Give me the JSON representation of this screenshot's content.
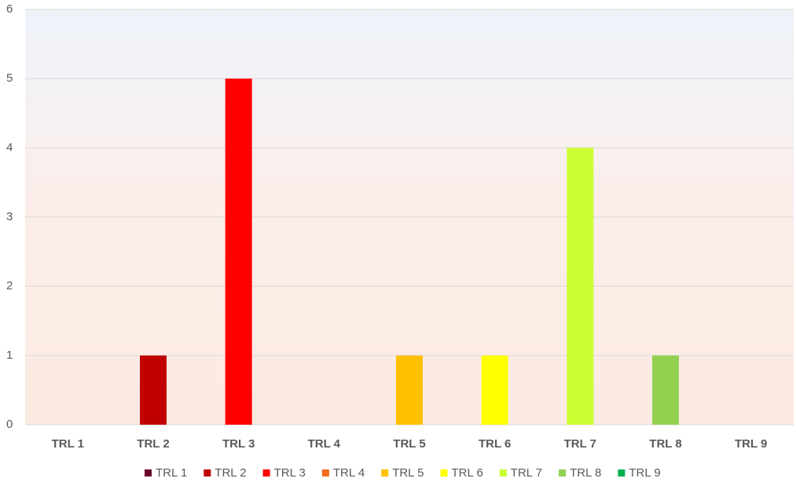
{
  "chart_data": {
    "type": "bar",
    "categories": [
      "TRL 1",
      "TRL 2",
      "TRL 3",
      "TRL 4",
      "TRL 5",
      "TRL 6",
      "TRL 7",
      "TRL 8",
      "TRL 9"
    ],
    "values": [
      0,
      1,
      5,
      0,
      1,
      1,
      4,
      1,
      0
    ],
    "colors": [
      "#6b0a2a",
      "#c00000",
      "#ff0000",
      "#f26a1b",
      "#ffc000",
      "#ffff00",
      "#ccff33",
      "#92d050",
      "#00b050"
    ],
    "ylim": [
      0,
      6
    ],
    "yticks": [
      0,
      1,
      2,
      3,
      4,
      5,
      6
    ],
    "grid": true,
    "legend": "bottom"
  }
}
